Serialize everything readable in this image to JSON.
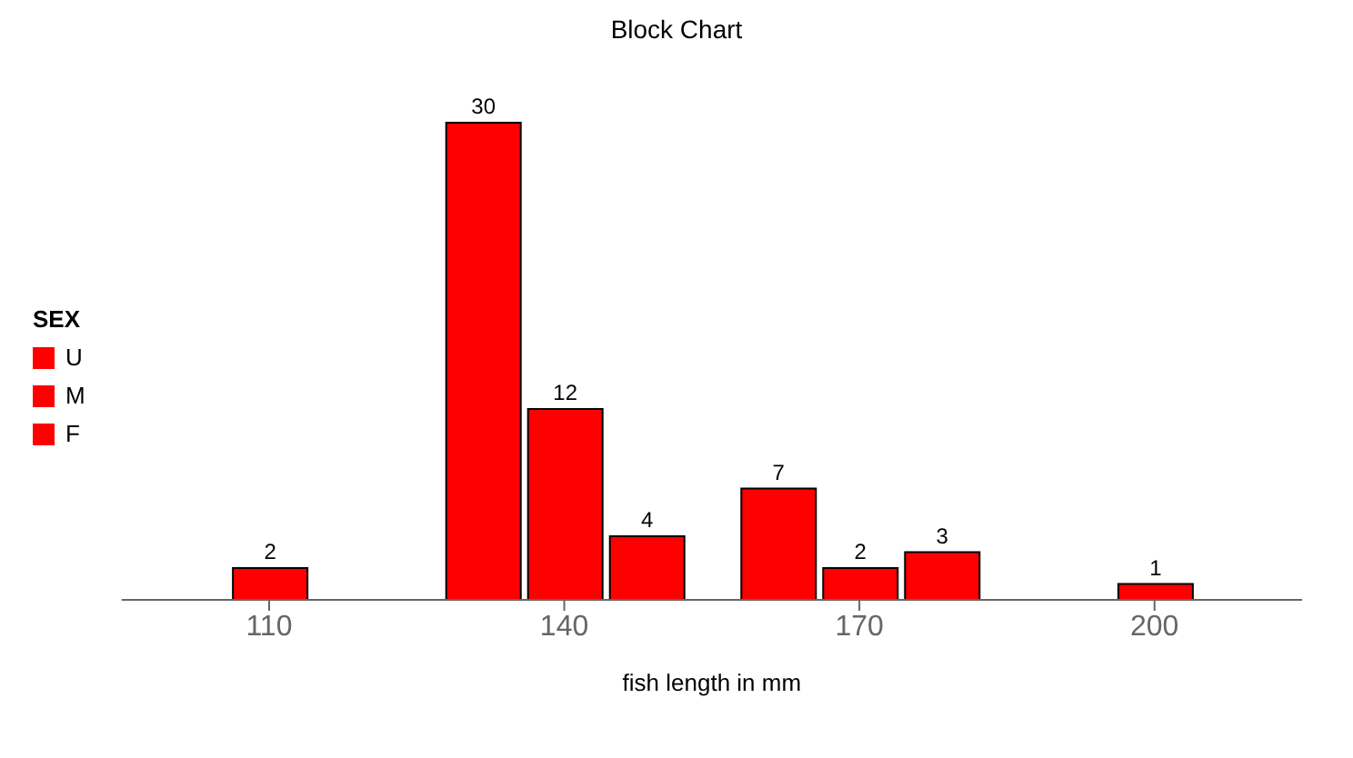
{
  "chart_data": {
    "type": "bar",
    "title": "Block Chart",
    "xlabel": "fish length in mm",
    "legend_title": "SEX",
    "categories": [
      "110",
      "140",
      "170",
      "200"
    ],
    "series": [
      {
        "name": "U",
        "color": "#ff0000",
        "values": [
          null,
          30,
          7,
          null
        ]
      },
      {
        "name": "M",
        "color": "#ff0000",
        "values": [
          2,
          12,
          2,
          1
        ]
      },
      {
        "name": "F",
        "color": "#ff0000",
        "values": [
          null,
          4,
          3,
          null
        ]
      }
    ],
    "data_labels": true,
    "legend": "left",
    "tick_labels": "x"
  }
}
